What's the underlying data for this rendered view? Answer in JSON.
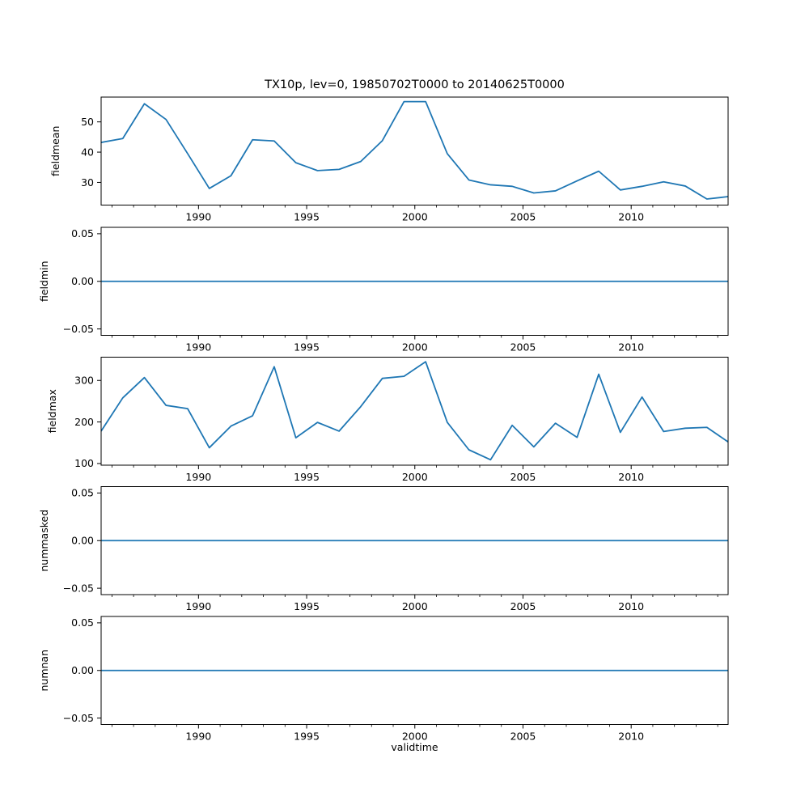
{
  "chart_data": {
    "type": "line",
    "title": "TX10p, lev=0, 19850702T0000 to 20140625T0000",
    "xlabel": "validtime",
    "line_color": "#1f77b4",
    "axis_color": "#000000",
    "background_color": "#ffffff",
    "grid": false,
    "legend": null,
    "xlim": [
      1985.5,
      2014.48
    ],
    "xticks": [
      1990,
      1995,
      2000,
      2005,
      2010
    ],
    "xtick_labels": [
      "1990",
      "1995",
      "2000",
      "2005",
      "2010"
    ],
    "xminor_tick_step_years": 1,
    "x": [
      1985.5,
      1986.5,
      1987.5,
      1988.5,
      1989.5,
      1990.5,
      1991.5,
      1992.5,
      1993.5,
      1994.5,
      1995.5,
      1996.5,
      1997.5,
      1998.5,
      1999.5,
      2000.5,
      2001.5,
      2002.5,
      2003.5,
      2004.5,
      2005.5,
      2006.5,
      2007.5,
      2008.5,
      2009.5,
      2010.5,
      2011.5,
      2012.5,
      2013.5,
      2014.48
    ],
    "panels": [
      {
        "ylabel": "fieldmean",
        "ylim": [
          22.5,
          58.2
        ],
        "ytick_values": [
          30,
          40,
          50
        ],
        "ytick_labels": [
          "30",
          "40",
          "50"
        ],
        "values": [
          43.2,
          44.5,
          56.0,
          50.8,
          39.5,
          28.0,
          32.2,
          44.1,
          43.7,
          36.5,
          33.9,
          34.3,
          36.9,
          43.8,
          56.7,
          56.7,
          39.5,
          30.8,
          29.2,
          28.7,
          26.5,
          27.2,
          30.5,
          33.7,
          27.5,
          28.7,
          30.2,
          28.8,
          24.5,
          25.3
        ]
      },
      {
        "ylabel": "fieldmin",
        "ylim": [
          -0.0567,
          0.0567
        ],
        "ytick_values": [
          -0.05,
          0.0,
          0.05
        ],
        "ytick_labels": [
          "−0.05",
          "0.00",
          "0.05"
        ],
        "values": [
          0,
          0,
          0,
          0,
          0,
          0,
          0,
          0,
          0,
          0,
          0,
          0,
          0,
          0,
          0,
          0,
          0,
          0,
          0,
          0,
          0,
          0,
          0,
          0,
          0,
          0,
          0,
          0,
          0,
          0
        ]
      },
      {
        "ylabel": "fieldmax",
        "ylim": [
          96,
          356
        ],
        "ytick_values": [
          100,
          200,
          300
        ],
        "ytick_labels": [
          "100",
          "200",
          "300"
        ],
        "values": [
          178,
          258,
          307,
          240,
          232,
          138,
          190,
          215,
          333,
          162,
          199,
          178,
          237,
          305,
          310,
          345,
          199,
          133,
          109,
          192,
          140,
          197,
          163,
          315,
          175,
          260,
          177,
          185,
          187,
          152
        ]
      },
      {
        "ylabel": "nummasked",
        "ylim": [
          -0.0567,
          0.0567
        ],
        "ytick_values": [
          -0.05,
          0.0,
          0.05
        ],
        "ytick_labels": [
          "−0.05",
          "0.00",
          "0.05"
        ],
        "values": [
          0,
          0,
          0,
          0,
          0,
          0,
          0,
          0,
          0,
          0,
          0,
          0,
          0,
          0,
          0,
          0,
          0,
          0,
          0,
          0,
          0,
          0,
          0,
          0,
          0,
          0,
          0,
          0,
          0,
          0
        ]
      },
      {
        "ylabel": "numnan",
        "ylim": [
          -0.0567,
          0.0567
        ],
        "ytick_values": [
          -0.05,
          0.0,
          0.05
        ],
        "ytick_labels": [
          "−0.05",
          "0.00",
          "0.05"
        ],
        "values": [
          0,
          0,
          0,
          0,
          0,
          0,
          0,
          0,
          0,
          0,
          0,
          0,
          0,
          0,
          0,
          0,
          0,
          0,
          0,
          0,
          0,
          0,
          0,
          0,
          0,
          0,
          0,
          0,
          0,
          0
        ]
      }
    ]
  }
}
